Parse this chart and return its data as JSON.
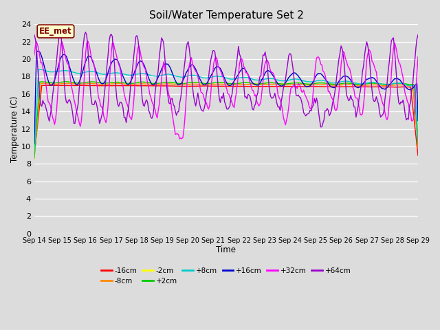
{
  "title": "Soil/Water Temperature Set 2",
  "xlabel": "Time",
  "ylabel": "Temperature (C)",
  "ylim": [
    0,
    24
  ],
  "yticks": [
    0,
    2,
    4,
    6,
    8,
    10,
    12,
    14,
    16,
    18,
    20,
    22,
    24
  ],
  "xtick_labels": [
    "Sep 14",
    "Sep 15",
    "Sep 16",
    "Sep 17",
    "Sep 18",
    "Sep 19",
    "Sep 20",
    "Sep 21",
    "Sep 22",
    "Sep 23",
    "Sep 24",
    "Sep 25",
    "Sep 26",
    "Sep 27",
    "Sep 28",
    "Sep 29"
  ],
  "background_color": "#dcdcdc",
  "plot_bg_color": "#dcdcdc",
  "annotation_text": "EE_met",
  "annotation_bg": "#ffffcc",
  "annotation_border": "#800000",
  "series": [
    {
      "label": "-16cm",
      "color": "#ff0000"
    },
    {
      "label": "-8cm",
      "color": "#ff8800"
    },
    {
      "label": "-2cm",
      "color": "#ffff00"
    },
    {
      "label": "+2cm",
      "color": "#00cc00"
    },
    {
      "label": "+8cm",
      "color": "#00cccc"
    },
    {
      "label": "+16cm",
      "color": "#0000cc"
    },
    {
      "label": "+32cm",
      "color": "#ff00ff"
    },
    {
      "label": "+64cm",
      "color": "#9900cc"
    }
  ],
  "legend_ncol_row1": 6,
  "legend_labels_row1": [
    "-16cm",
    "-8cm",
    "-2cm",
    "+2cm",
    "+8cm",
    "+16cm"
  ],
  "legend_labels_row2": [
    "+32cm",
    "+64cm"
  ]
}
